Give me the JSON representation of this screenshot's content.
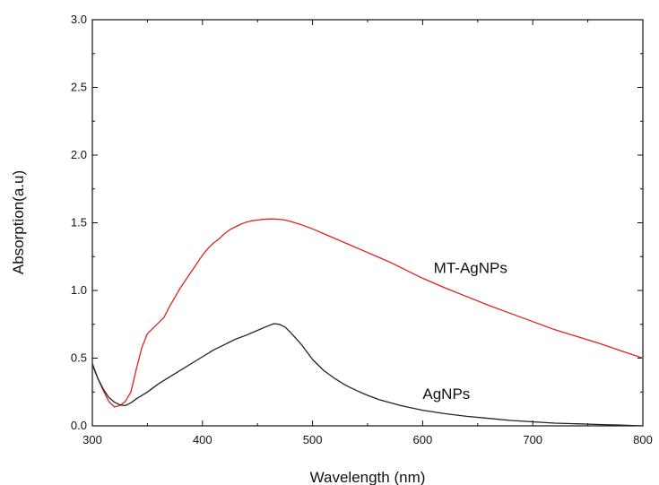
{
  "chart_data": {
    "type": "line",
    "title": "",
    "xlabel": "Wavelength (nm)",
    "ylabel": "Absorption(a.u)",
    "xlim": [
      300,
      800
    ],
    "ylim": [
      0,
      3.0
    ],
    "x_ticks": [
      300,
      400,
      500,
      600,
      700,
      800
    ],
    "y_ticks": [
      "0.0",
      "0.5",
      "1.0",
      "1.5",
      "2.0",
      "2.5",
      "3.0"
    ],
    "grid": false,
    "legend": "none (series labelled directly on the plot)",
    "series": [
      {
        "name": "MT-AgNPs",
        "color": "#e02020",
        "points": [
          [
            300,
            0.45
          ],
          [
            305,
            0.35
          ],
          [
            310,
            0.26
          ],
          [
            315,
            0.18
          ],
          [
            320,
            0.14
          ],
          [
            325,
            0.15
          ],
          [
            330,
            0.18
          ],
          [
            335,
            0.25
          ],
          [
            340,
            0.42
          ],
          [
            345,
            0.58
          ],
          [
            350,
            0.68
          ],
          [
            355,
            0.72
          ],
          [
            360,
            0.76
          ],
          [
            365,
            0.8
          ],
          [
            370,
            0.88
          ],
          [
            375,
            0.95
          ],
          [
            380,
            1.02
          ],
          [
            385,
            1.08
          ],
          [
            390,
            1.14
          ],
          [
            395,
            1.2
          ],
          [
            400,
            1.26
          ],
          [
            405,
            1.31
          ],
          [
            410,
            1.35
          ],
          [
            415,
            1.38
          ],
          [
            420,
            1.42
          ],
          [
            425,
            1.45
          ],
          [
            430,
            1.47
          ],
          [
            435,
            1.49
          ],
          [
            440,
            1.505
          ],
          [
            445,
            1.515
          ],
          [
            450,
            1.52
          ],
          [
            455,
            1.525
          ],
          [
            460,
            1.528
          ],
          [
            465,
            1.528
          ],
          [
            470,
            1.526
          ],
          [
            475,
            1.52
          ],
          [
            480,
            1.51
          ],
          [
            490,
            1.485
          ],
          [
            500,
            1.455
          ],
          [
            510,
            1.42
          ],
          [
            520,
            1.385
          ],
          [
            530,
            1.35
          ],
          [
            540,
            1.315
          ],
          [
            550,
            1.28
          ],
          [
            560,
            1.245
          ],
          [
            570,
            1.21
          ],
          [
            580,
            1.17
          ],
          [
            590,
            1.13
          ],
          [
            600,
            1.09
          ],
          [
            620,
            1.02
          ],
          [
            640,
            0.955
          ],
          [
            660,
            0.89
          ],
          [
            680,
            0.83
          ],
          [
            700,
            0.77
          ],
          [
            720,
            0.71
          ],
          [
            740,
            0.66
          ],
          [
            760,
            0.61
          ],
          [
            780,
            0.555
          ],
          [
            800,
            0.5
          ]
        ]
      },
      {
        "name": "AgNPs",
        "color": "#222222",
        "points": [
          [
            300,
            0.46
          ],
          [
            305,
            0.35
          ],
          [
            310,
            0.27
          ],
          [
            315,
            0.21
          ],
          [
            320,
            0.175
          ],
          [
            325,
            0.155
          ],
          [
            330,
            0.15
          ],
          [
            335,
            0.17
          ],
          [
            340,
            0.2
          ],
          [
            350,
            0.25
          ],
          [
            360,
            0.31
          ],
          [
            370,
            0.36
          ],
          [
            380,
            0.41
          ],
          [
            390,
            0.46
          ],
          [
            400,
            0.51
          ],
          [
            410,
            0.56
          ],
          [
            420,
            0.6
          ],
          [
            430,
            0.64
          ],
          [
            440,
            0.67
          ],
          [
            450,
            0.705
          ],
          [
            460,
            0.74
          ],
          [
            465,
            0.755
          ],
          [
            470,
            0.75
          ],
          [
            475,
            0.73
          ],
          [
            480,
            0.69
          ],
          [
            490,
            0.6
          ],
          [
            500,
            0.49
          ],
          [
            510,
            0.41
          ],
          [
            520,
            0.35
          ],
          [
            530,
            0.3
          ],
          [
            540,
            0.26
          ],
          [
            550,
            0.225
          ],
          [
            560,
            0.195
          ],
          [
            580,
            0.15
          ],
          [
            600,
            0.115
          ],
          [
            620,
            0.09
          ],
          [
            640,
            0.07
          ],
          [
            660,
            0.055
          ],
          [
            680,
            0.04
          ],
          [
            700,
            0.03
          ],
          [
            720,
            0.02
          ],
          [
            740,
            0.015
          ],
          [
            760,
            0.01
          ],
          [
            780,
            0.005
          ],
          [
            800,
            0.0
          ]
        ]
      }
    ],
    "annotations": [
      {
        "text": "MT-AgNPs",
        "x": 610,
        "y": 1.13
      },
      {
        "text": "AgNPs",
        "x": 600,
        "y": 0.2
      }
    ]
  }
}
